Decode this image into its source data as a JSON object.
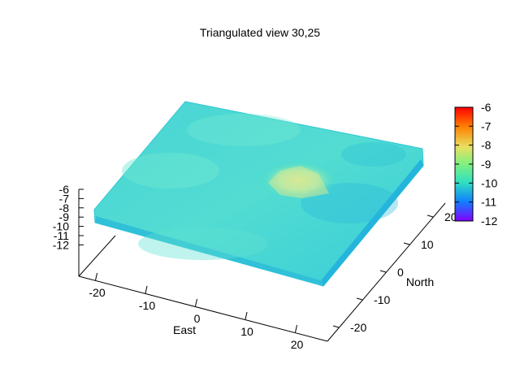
{
  "chart_data": {
    "type": "surface3d",
    "title": "Triangulated view 30,25",
    "view": {
      "rot_x": 30,
      "rot_z": 25
    },
    "xlabel": "East",
    "ylabel": "North",
    "zlabel": "",
    "x_ticks": [
      -20,
      -10,
      0,
      10,
      20
    ],
    "y_ticks": [
      -20,
      -10,
      0,
      10,
      20
    ],
    "z_ticks": [
      -6,
      -7,
      -8,
      -9,
      -10,
      -11,
      -12
    ],
    "xlim": [
      -25,
      25
    ],
    "ylim": [
      -25,
      25
    ],
    "zlim": [
      -12,
      -6
    ],
    "colorbar": {
      "ticks": [
        -6,
        -7,
        -8,
        -9,
        -10,
        -11,
        -12
      ],
      "range": [
        -12,
        -6
      ],
      "colors": [
        "#ff0000",
        "#ff8000",
        "#ffd060",
        "#80f080",
        "#30e0c0",
        "#1080ff",
        "#8000ff"
      ]
    },
    "surface": {
      "baseline_z": -10.2,
      "peak": {
        "east": 5,
        "north": 3,
        "z": -8.6
      }
    }
  },
  "colors": {
    "surface_main": "#3ed6d0",
    "surface_light": "#7ef0d8",
    "surface_dark": "#22b8d8",
    "peak": "#d8e888",
    "axis": "#000000"
  }
}
